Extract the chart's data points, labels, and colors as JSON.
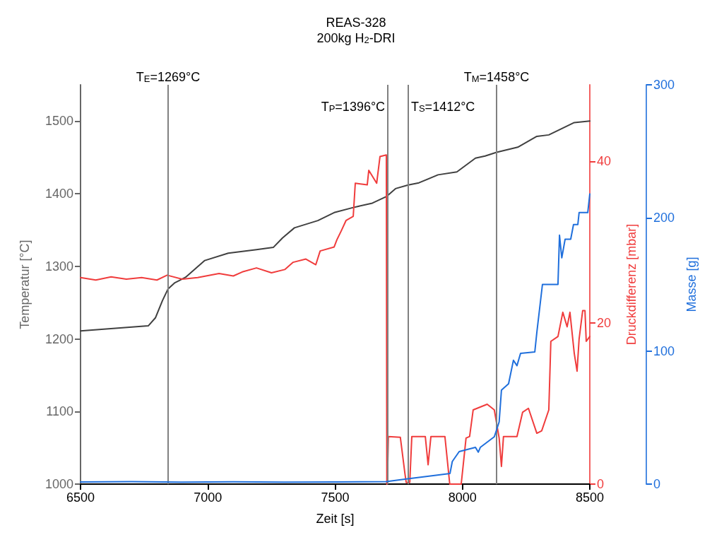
{
  "chart_data": {
    "type": "line",
    "title": "REAS-328",
    "subtitle": "200kg H$_{2}$-DRI",
    "xlabel": "Zeit [s]",
    "ylabel": "Temperatur [°C]",
    "y2label": "Druckdifferenz [mbar]",
    "y3label": "Masse [g]",
    "xlim": [
      6500,
      8500
    ],
    "xticks": [
      6500,
      7000,
      7500,
      8000,
      8500
    ],
    "ylim": [
      1000,
      1550
    ],
    "yticks": [
      1000,
      1100,
      1200,
      1300,
      1400,
      1500
    ],
    "y2lim": [
      0,
      49.5
    ],
    "y2ticks": [
      0,
      20,
      40
    ],
    "y3lim": [
      0,
      300
    ],
    "y3ticks": [
      0,
      100,
      200,
      300
    ],
    "grid": false,
    "marker": "none",
    "line_style": "solid",
    "series": [
      {
        "color": "#404040",
        "x": [
          6500,
          6766,
          6794,
          6822,
          6844,
          6869,
          6913,
          6988,
          7080,
          7191,
          7257,
          7293,
          7340,
          7432,
          7496,
          7571,
          7646,
          7701,
          7737,
          7787,
          7829,
          7904,
          7978,
          8051,
          8089,
          8134,
          8217,
          8292,
          8339,
          8439,
          8500
        ],
        "values": [
          1211,
          1218,
          1229,
          1253,
          1269,
          1277,
          1285,
          1308,
          1318,
          1323,
          1326,
          1339,
          1353,
          1363,
          1374,
          1381,
          1387,
          1396,
          1407,
          1412,
          1415,
          1426,
          1430,
          1449,
          1452,
          1457,
          1464,
          1479,
          1481,
          1498,
          1500
        ]
      },
      {
        "color": "#f03c3c",
        "axis": "y2",
        "x": [
          6500,
          6560,
          6620,
          6680,
          6740,
          6800,
          6840,
          6900,
          6960,
          7044,
          7100,
          7135,
          7191,
          7250,
          7302,
          7335,
          7385,
          7424,
          7441,
          7496,
          7507,
          7524,
          7543,
          7571,
          7579,
          7626,
          7632,
          7663,
          7676,
          7701,
          7703,
          7705,
          7709,
          7756,
          7774,
          7779,
          7793,
          7801,
          7854,
          7865,
          7876,
          7931,
          7950,
          7995,
          8014,
          8028,
          8042,
          8097,
          8125,
          8144,
          8153,
          8161,
          8214,
          8236,
          8259,
          8292,
          8311,
          8339,
          8347,
          8375,
          8394,
          8411,
          8422,
          8439,
          8450,
          8458,
          8472,
          8481,
          8486,
          8500
        ],
        "values": [
          25.6,
          25.3,
          25.7,
          25.4,
          25.6,
          25.3,
          25.9,
          25.4,
          25.6,
          26.1,
          25.8,
          26.3,
          26.8,
          26.2,
          26.6,
          27.5,
          27.9,
          27.2,
          28.9,
          29.4,
          30.3,
          31.4,
          32.7,
          33.2,
          37.3,
          37.1,
          38.9,
          37.3,
          40.6,
          40.8,
          0,
          0.4,
          5.9,
          5.8,
          1.3,
          0.2,
          0.2,
          5.9,
          5.9,
          2.4,
          5.9,
          5.9,
          0,
          0,
          5.7,
          5.9,
          9.2,
          9.9,
          9.2,
          5.7,
          2.2,
          5.9,
          5.9,
          8.9,
          9.4,
          6.3,
          6.6,
          9.2,
          17.7,
          18.3,
          21.3,
          19.5,
          21.3,
          16.2,
          14.0,
          18.0,
          21.5,
          21.5,
          17.7,
          18.3
        ]
      },
      {
        "color": "#1f6fdc",
        "axis": "y3",
        "x": [
          6500,
          6700,
          6900,
          7100,
          7300,
          7500,
          7700,
          7774,
          7885,
          7951,
          7960,
          7987,
          8051,
          8062,
          8070,
          8125,
          8144,
          8153,
          8181,
          8200,
          8214,
          8228,
          8284,
          8292,
          8314,
          8375,
          8381,
          8390,
          8403,
          8425,
          8436,
          8453,
          8458,
          8492,
          8500
        ],
        "values": [
          1.6,
          1.8,
          1.4,
          1.7,
          1.5,
          1.6,
          1.8,
          3.7,
          6.4,
          8.0,
          17,
          24.4,
          27.6,
          24,
          27.6,
          35.6,
          46.7,
          70.6,
          75.4,
          93,
          89,
          98.2,
          99.3,
          114,
          150,
          150,
          187,
          170,
          184,
          184,
          195,
          195,
          204,
          204,
          218
        ]
      }
    ],
    "ref_lines": [
      {
        "axis": "x",
        "value": 6844
      },
      {
        "axis": "x",
        "value": 7707
      },
      {
        "axis": "x",
        "value": 7787
      },
      {
        "axis": "x",
        "value": 8134
      }
    ],
    "annotations": [
      "T$_{E}$=1269°C",
      "T$_{P}$=1396°C",
      "T$_{S}$=1412°C",
      "T$_{M}$=1458°C"
    ]
  }
}
